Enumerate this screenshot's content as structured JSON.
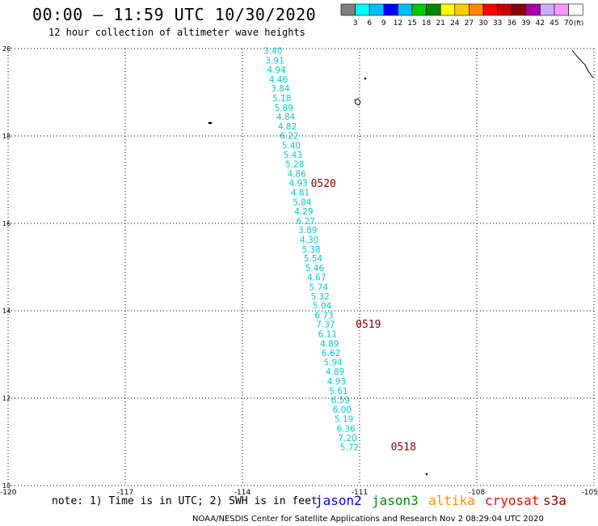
{
  "title": "00:00 – 11:59 UTC 10/30/2020",
  "subtitle": "12 hour collection of altimeter wave heights",
  "colorbar": {
    "colors": [
      "#808080",
      "#00ffff",
      "#00bfff",
      "#0000ff",
      "#00bfff",
      "#00cc00",
      "#008800",
      "#ffff00",
      "#ffcc00",
      "#ff8800",
      "#ff0000",
      "#cc0000",
      "#880000",
      "#aa00aa",
      "#ccaaff",
      "#ff99ff",
      "#ffffff"
    ],
    "labels": [
      "3",
      "6",
      "9",
      "12",
      "15",
      "18",
      "21",
      "24",
      "27",
      "30",
      "33",
      "36",
      "39",
      "42",
      "45",
      "70"
    ],
    "unit": "(ft)"
  },
  "map": {
    "lon_range": [
      -120,
      -105
    ],
    "lat_range": [
      10,
      20
    ],
    "lon_ticks": [
      "-120",
      "-117",
      "-114",
      "-111",
      "-108",
      "-105"
    ],
    "lat_ticks": [
      "20",
      "18",
      "16",
      "14",
      "12",
      "10"
    ]
  },
  "track": {
    "color": "#00cccc",
    "points": [
      {
        "lat": 19.95,
        "lon": -113.22,
        "v": "3.40"
      },
      {
        "lat": 19.73,
        "lon": -113.17,
        "v": "3.91"
      },
      {
        "lat": 19.52,
        "lon": -113.13,
        "v": "4.94"
      },
      {
        "lat": 19.3,
        "lon": -113.08,
        "v": "4.46"
      },
      {
        "lat": 19.09,
        "lon": -113.03,
        "v": "3.84"
      },
      {
        "lat": 18.87,
        "lon": -112.99,
        "v": "5.18"
      },
      {
        "lat": 18.65,
        "lon": -112.94,
        "v": "5.89"
      },
      {
        "lat": 18.44,
        "lon": -112.89,
        "v": "4.84"
      },
      {
        "lat": 18.22,
        "lon": -112.85,
        "v": "4.82"
      },
      {
        "lat": 18.01,
        "lon": -112.8,
        "v": "6.22"
      },
      {
        "lat": 17.79,
        "lon": -112.75,
        "v": "5.40"
      },
      {
        "lat": 17.57,
        "lon": -112.71,
        "v": "5.43"
      },
      {
        "lat": 17.36,
        "lon": -112.66,
        "v": "5.28"
      },
      {
        "lat": 17.14,
        "lon": -112.61,
        "v": "4.86"
      },
      {
        "lat": 16.93,
        "lon": -112.57,
        "v": "4.93"
      },
      {
        "lat": 16.71,
        "lon": -112.52,
        "v": "4.81"
      },
      {
        "lat": 16.49,
        "lon": -112.47,
        "v": "5.84"
      },
      {
        "lat": 16.28,
        "lon": -112.43,
        "v": "4.29"
      },
      {
        "lat": 16.06,
        "lon": -112.38,
        "v": "6.27"
      },
      {
        "lat": 15.85,
        "lon": -112.33,
        "v": "3.89"
      },
      {
        "lat": 15.63,
        "lon": -112.29,
        "v": "4.30"
      },
      {
        "lat": 15.41,
        "lon": -112.24,
        "v": "5.38"
      },
      {
        "lat": 15.2,
        "lon": -112.19,
        "v": "5.54"
      },
      {
        "lat": 14.98,
        "lon": -112.15,
        "v": "5.46"
      },
      {
        "lat": 14.77,
        "lon": -112.1,
        "v": "4.67"
      },
      {
        "lat": 14.55,
        "lon": -112.05,
        "v": "5.74"
      },
      {
        "lat": 14.33,
        "lon": -112.01,
        "v": "5.32"
      },
      {
        "lat": 14.12,
        "lon": -111.96,
        "v": "5.04"
      },
      {
        "lat": 13.9,
        "lon": -111.91,
        "v": "6.73"
      },
      {
        "lat": 13.69,
        "lon": -111.87,
        "v": "7.37"
      },
      {
        "lat": 13.47,
        "lon": -111.82,
        "v": "6.11"
      },
      {
        "lat": 13.25,
        "lon": -111.77,
        "v": "4.89"
      },
      {
        "lat": 13.04,
        "lon": -111.73,
        "v": "6.62"
      },
      {
        "lat": 12.82,
        "lon": -111.68,
        "v": "5.94"
      },
      {
        "lat": 12.61,
        "lon": -111.63,
        "v": "4.89"
      },
      {
        "lat": 12.39,
        "lon": -111.59,
        "v": "4.93"
      },
      {
        "lat": 12.17,
        "lon": -111.54,
        "v": "5.61"
      },
      {
        "lat": 11.96,
        "lon": -111.49,
        "v": "6.59"
      },
      {
        "lat": 11.74,
        "lon": -111.45,
        "v": "6.00"
      },
      {
        "lat": 11.53,
        "lon": -111.4,
        "v": "5.19"
      },
      {
        "lat": 11.31,
        "lon": -111.35,
        "v": "6.36"
      },
      {
        "lat": 11.09,
        "lon": -111.31,
        "v": "7.20"
      },
      {
        "lat": 10.88,
        "lon": -111.26,
        "v": "5.72"
      }
    ]
  },
  "time_labels": {
    "color": "#880000",
    "items": [
      {
        "lat": 16.93,
        "lon": -112.25,
        "text": "0520"
      },
      {
        "lat": 13.7,
        "lon": -111.1,
        "text": "0519"
      },
      {
        "lat": 10.9,
        "lon": -110.2,
        "text": "0518"
      }
    ]
  },
  "note": "note: 1) Time is in UTC; 2) SWH is in feet",
  "satellites": [
    {
      "name": "jason2",
      "color": "#0000ff"
    },
    {
      "name": "jason3",
      "color": "#008800"
    },
    {
      "name": "altika",
      "color": "#ff8800"
    },
    {
      "name": "cryosat",
      "color": "#ff0000"
    },
    {
      "name": "s3a",
      "color": "#880000"
    }
  ],
  "footer": "NOAA/NESDIS Center for Satellite Applications and Research   Nov  2 08:29:04 UTC 2020"
}
